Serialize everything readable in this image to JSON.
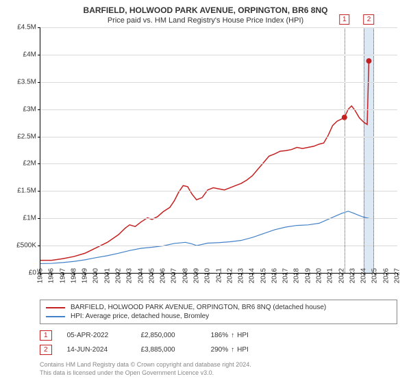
{
  "title": "BARFIELD, HOLWOOD PARK AVENUE, ORPINGTON, BR6 8NQ",
  "subtitle": "Price paid vs. HM Land Registry's House Price Index (HPI)",
  "chart": {
    "type": "line",
    "background_color": "#ffffff",
    "grid_color": "#d9d9d9",
    "axis_color": "#000000",
    "x": {
      "min": 1995,
      "max": 2027,
      "tick_step": 1,
      "label_fontsize": 10,
      "label_rotation": -90
    },
    "y": {
      "min": 0,
      "max": 4500000,
      "tick_step": 500000,
      "labels": [
        "£0",
        "£500K",
        "£1M",
        "£1.5M",
        "£2M",
        "£2.5M",
        "£3M",
        "£3.5M",
        "£4M",
        "£4.5M"
      ],
      "label_fontsize": 10
    },
    "series": [
      {
        "id": "property",
        "label": "BARFIELD, HOLWOOD PARK AVENUE, ORPINGTON, BR6 8NQ (detached house)",
        "color": "#c42020",
        "line_width": 1.5,
        "data": [
          [
            1995.0,
            230000
          ],
          [
            1996.0,
            230000
          ],
          [
            1997.0,
            260000
          ],
          [
            1998.0,
            300000
          ],
          [
            1999.0,
            360000
          ],
          [
            2000.0,
            460000
          ],
          [
            2001.0,
            560000
          ],
          [
            2002.0,
            700000
          ],
          [
            2002.6,
            820000
          ],
          [
            2003.0,
            880000
          ],
          [
            2003.5,
            850000
          ],
          [
            2004.0,
            930000
          ],
          [
            2004.6,
            1010000
          ],
          [
            2005.0,
            980000
          ],
          [
            2005.5,
            1030000
          ],
          [
            2006.0,
            1120000
          ],
          [
            2006.6,
            1200000
          ],
          [
            2007.0,
            1320000
          ],
          [
            2007.4,
            1480000
          ],
          [
            2007.8,
            1600000
          ],
          [
            2008.2,
            1580000
          ],
          [
            2008.6,
            1440000
          ],
          [
            2009.0,
            1340000
          ],
          [
            2009.5,
            1380000
          ],
          [
            2010.0,
            1520000
          ],
          [
            2010.5,
            1560000
          ],
          [
            2011.0,
            1540000
          ],
          [
            2011.5,
            1520000
          ],
          [
            2012.0,
            1560000
          ],
          [
            2012.5,
            1600000
          ],
          [
            2013.0,
            1640000
          ],
          [
            2013.5,
            1700000
          ],
          [
            2014.0,
            1780000
          ],
          [
            2014.5,
            1900000
          ],
          [
            2015.0,
            2020000
          ],
          [
            2015.5,
            2140000
          ],
          [
            2016.0,
            2180000
          ],
          [
            2016.5,
            2230000
          ],
          [
            2017.0,
            2240000
          ],
          [
            2017.5,
            2260000
          ],
          [
            2018.0,
            2300000
          ],
          [
            2018.5,
            2280000
          ],
          [
            2019.0,
            2300000
          ],
          [
            2019.5,
            2320000
          ],
          [
            2020.0,
            2360000
          ],
          [
            2020.4,
            2380000
          ],
          [
            2020.8,
            2520000
          ],
          [
            2021.2,
            2700000
          ],
          [
            2021.6,
            2780000
          ],
          [
            2022.0,
            2820000
          ],
          [
            2022.26,
            2850000
          ],
          [
            2022.6,
            3000000
          ],
          [
            2022.9,
            3060000
          ],
          [
            2023.2,
            2980000
          ],
          [
            2023.6,
            2840000
          ],
          [
            2024.0,
            2760000
          ],
          [
            2024.3,
            2720000
          ],
          [
            2024.45,
            3885000
          ]
        ]
      },
      {
        "id": "hpi",
        "label": "HPI: Average price, detached house, Bromley",
        "color": "#4281c7",
        "line_width": 1.2,
        "data": [
          [
            1995.0,
            170000
          ],
          [
            1996.0,
            175000
          ],
          [
            1997.0,
            190000
          ],
          [
            1998.0,
            210000
          ],
          [
            1999.0,
            240000
          ],
          [
            2000.0,
            280000
          ],
          [
            2001.0,
            315000
          ],
          [
            2002.0,
            360000
          ],
          [
            2003.0,
            410000
          ],
          [
            2004.0,
            450000
          ],
          [
            2005.0,
            470000
          ],
          [
            2006.0,
            495000
          ],
          [
            2007.0,
            540000
          ],
          [
            2008.0,
            560000
          ],
          [
            2008.6,
            530000
          ],
          [
            2009.0,
            500000
          ],
          [
            2010.0,
            545000
          ],
          [
            2011.0,
            555000
          ],
          [
            2012.0,
            570000
          ],
          [
            2013.0,
            595000
          ],
          [
            2014.0,
            650000
          ],
          [
            2015.0,
            720000
          ],
          [
            2016.0,
            790000
          ],
          [
            2017.0,
            840000
          ],
          [
            2018.0,
            870000
          ],
          [
            2019.0,
            880000
          ],
          [
            2020.0,
            910000
          ],
          [
            2021.0,
            1000000
          ],
          [
            2022.0,
            1090000
          ],
          [
            2022.6,
            1130000
          ],
          [
            2023.0,
            1100000
          ],
          [
            2023.6,
            1050000
          ],
          [
            2024.0,
            1020000
          ],
          [
            2024.45,
            1000000
          ]
        ]
      }
    ],
    "markers": [
      {
        "index_label": "1",
        "x_start": 2022.26,
        "x_end": 2022.26,
        "dot": {
          "x": 2022.26,
          "y": 2850000,
          "color": "#c42020",
          "radius": 4
        }
      },
      {
        "index_label": "2",
        "x_start": 2024.0,
        "x_end": 2024.9,
        "dot": {
          "x": 2024.45,
          "y": 3885000,
          "color": "#c42020",
          "radius": 4
        }
      }
    ]
  },
  "legend": {
    "border_color": "#888888",
    "items": [
      {
        "series": "property"
      },
      {
        "series": "hpi"
      }
    ]
  },
  "sales": [
    {
      "index": "1",
      "date": "05-APR-2022",
      "price": "£2,850,000",
      "hpi_pct": "186%",
      "arrow": "↑",
      "hpi_label": "HPI"
    },
    {
      "index": "2",
      "date": "14-JUN-2024",
      "price": "£3,885,000",
      "hpi_pct": "290%",
      "arrow": "↑",
      "hpi_label": "HPI"
    }
  ],
  "footer": {
    "line1": "Contains HM Land Registry data © Crown copyright and database right 2024.",
    "line2": "This data is licensed under the Open Government Licence v3.0."
  },
  "box_color": "#c42020"
}
